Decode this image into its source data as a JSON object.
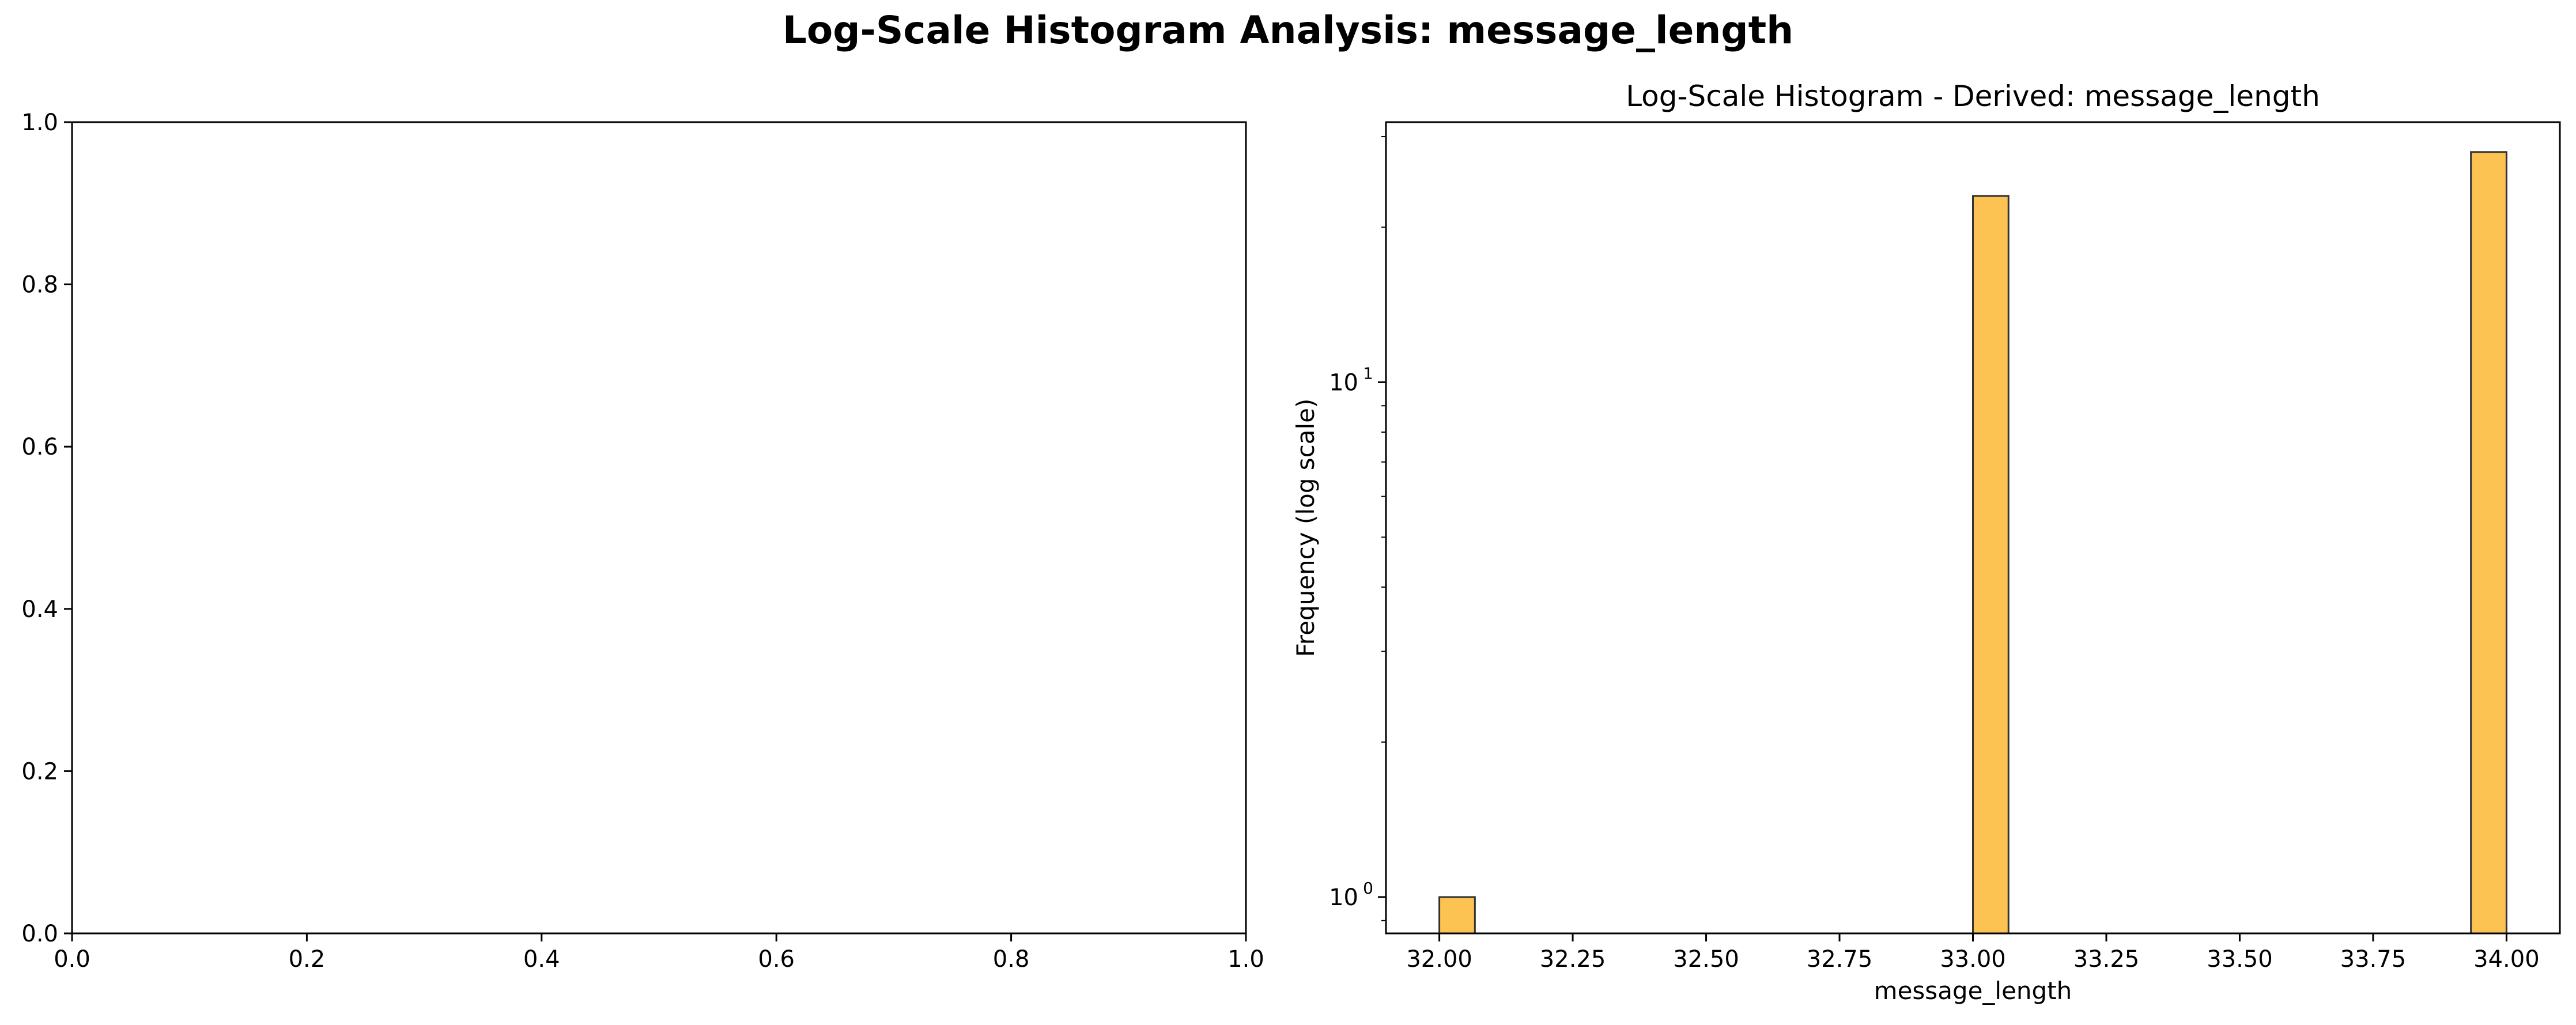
{
  "figure": {
    "suptitle": "Log-Scale Histogram Analysis: message_length"
  },
  "chart_data": [
    {
      "type": "empty",
      "title": "",
      "xlabel": "",
      "ylabel": "",
      "xlim": [
        0,
        1
      ],
      "ylim": [
        0,
        1
      ],
      "xticks": [
        "0.0",
        "0.2",
        "0.4",
        "0.6",
        "0.8",
        "1.0"
      ],
      "yticks": [
        "0.0",
        "0.2",
        "0.4",
        "0.6",
        "0.8",
        "1.0"
      ],
      "grid": false
    },
    {
      "type": "bar",
      "title": "Log-Scale Histogram - Derived: message_length",
      "xlabel": "message_length",
      "ylabel": "Frequency (log scale)",
      "yscale": "log",
      "xlim": [
        31.9,
        34.1
      ],
      "ylim": [
        0.85,
        32
      ],
      "xticks": [
        "32.00",
        "32.25",
        "32.50",
        "32.75",
        "33.00",
        "33.25",
        "33.50",
        "33.75",
        "34.00"
      ],
      "yticks": [
        "10^0",
        "10^1"
      ],
      "grid": false,
      "bar_color": "#fcbf49",
      "edge_color": "#333333",
      "bins": [
        {
          "x0": 32.0,
          "x1": 32.0667,
          "count": 1
        },
        {
          "x0": 33.0,
          "x1": 33.0667,
          "count": 23
        },
        {
          "x0": 33.9333,
          "x1": 34.0,
          "count": 28
        }
      ]
    }
  ]
}
